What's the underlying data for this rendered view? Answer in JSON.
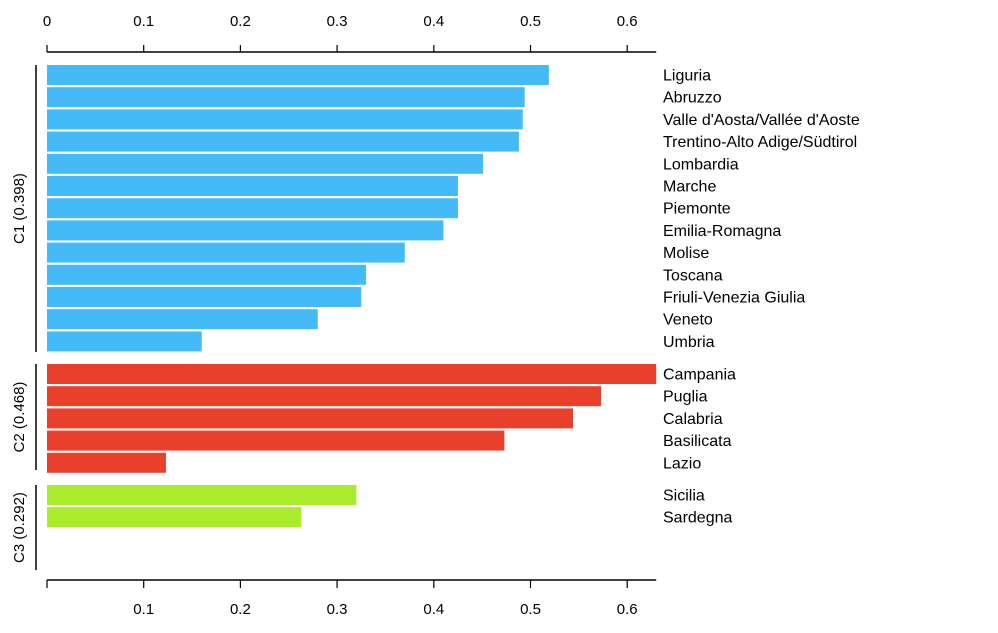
{
  "chart_data": {
    "type": "bar",
    "orientation": "horizontal",
    "xlim": [
      0,
      0.63
    ],
    "ticks_top": [
      "0",
      "0.1",
      "0.2",
      "0.3",
      "0.4",
      "0.5",
      "0.6"
    ],
    "ticks_bottom": [
      "0.1",
      "0.2",
      "0.3",
      "0.4",
      "0.5",
      "0.6"
    ],
    "groups": [
      {
        "label": "C1 (0.398)",
        "color": "#44bbf6",
        "categories": [
          "Liguria",
          "Abruzzo",
          "Valle d'Aosta/Vallée d'Aoste",
          "Trentino-Alto Adige/Südtirol",
          "Lombardia",
          "Marche",
          "Piemonte",
          "Emilia-Romagna",
          "Molise",
          "Toscana",
          "Friuli-Venezia Giulia",
          "Veneto",
          "Umbria"
        ],
        "values": [
          0.519,
          0.494,
          0.492,
          0.488,
          0.451,
          0.425,
          0.425,
          0.41,
          0.37,
          0.33,
          0.325,
          0.28,
          0.16
        ]
      },
      {
        "label": "C2 (0.468)",
        "color": "#e8402b",
        "categories": [
          "Campania",
          "Puglia",
          "Calabria",
          "Basilicata",
          "Lazio"
        ],
        "values": [
          0.63,
          0.573,
          0.544,
          0.473,
          0.123
        ]
      },
      {
        "label": "C3 (0.292)",
        "color": "#aaeb2b",
        "categories": [
          "Sicilia",
          "Sardegna"
        ],
        "values": [
          0.32,
          0.263
        ]
      }
    ]
  }
}
